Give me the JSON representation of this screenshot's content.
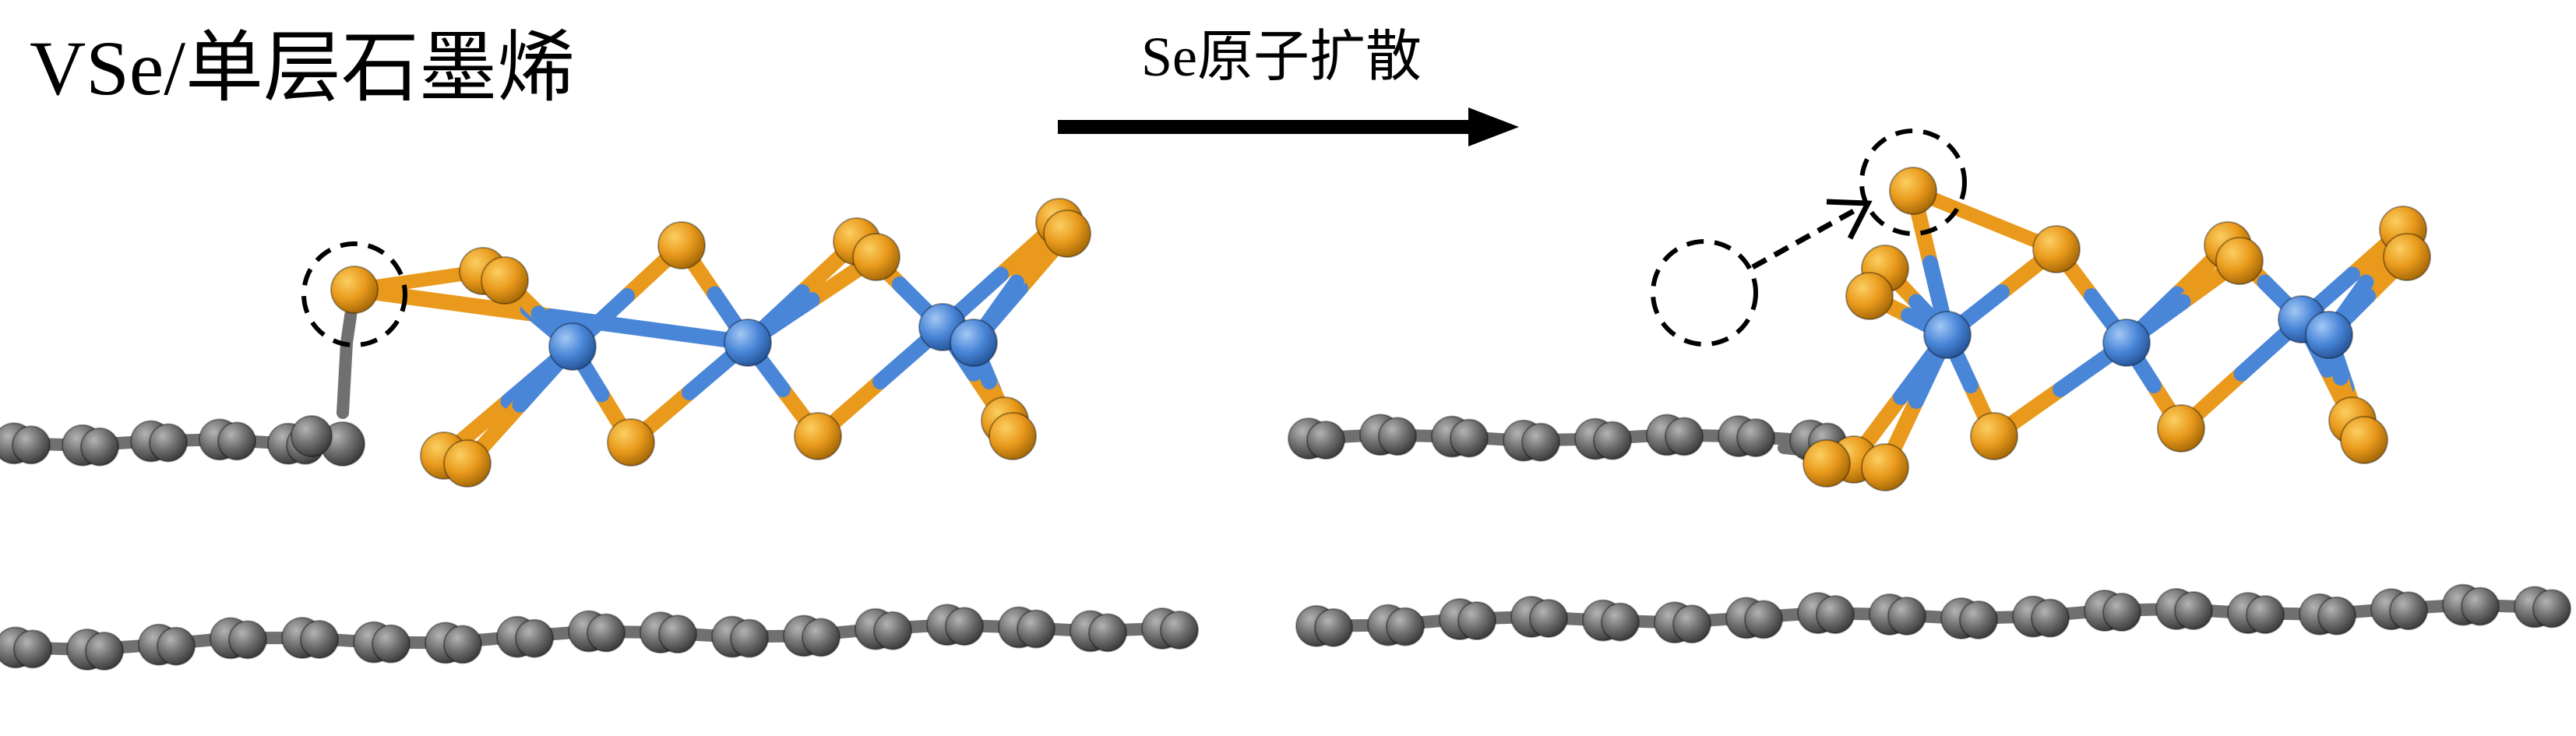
{
  "title": "VSe/单层石墨烯",
  "process_label": "Se原子扩散",
  "colors": {
    "carbon": "#6e6e6e",
    "carbon_highlight": "#a6a6a6",
    "bond_carbon": "#707070",
    "selenium": "#e99a1c",
    "selenium_highlight": "#f7c24e",
    "vanadium": "#4a86d8",
    "vanadium_highlight": "#8fbaf0",
    "marker": "#000000"
  },
  "icons": {
    "process_arrow": "right-arrow-icon",
    "atom_marker": "dashed-circle-icon",
    "diffusion_path": "dashed-arrow-icon"
  }
}
